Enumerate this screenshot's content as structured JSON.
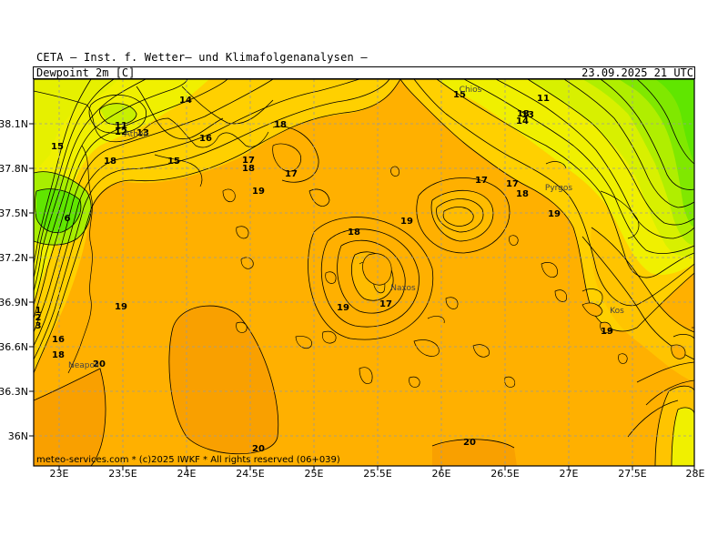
{
  "header": {
    "institute": "CETA — Inst. f. Wetter— und Klimafolgenanalysen —",
    "parameter": "Dewpoint_2m [C]",
    "valid_time": "23.09.2025 21 UTC"
  },
  "footer": "meteo-services.com * (c)2025 IWKF * All rights reserved (06+039)",
  "axes": {
    "lon_labels": [
      "23E",
      "23.5E",
      "24E",
      "24.5E",
      "25E",
      "25.5E",
      "26E",
      "26.5E",
      "27E",
      "27.5E",
      "28E"
    ],
    "lat_labels": [
      "38.1N",
      "37.8N",
      "37.5N",
      "37.2N",
      "36.9N",
      "36.6N",
      "36.3N",
      "36N"
    ]
  },
  "cities": [
    "Chios",
    "Athen",
    "Pyrgos",
    "Naxos",
    "Kos",
    "Neapoli"
  ],
  "contour_labels": [
    "11",
    "11",
    "12",
    "13",
    "13",
    "13",
    "14",
    "14",
    "15",
    "15",
    "15",
    "16",
    "16",
    "17",
    "17",
    "17",
    "17",
    "17",
    "18",
    "18",
    "18",
    "18",
    "18",
    "18",
    "19",
    "19",
    "19",
    "19",
    "19",
    "19",
    "20",
    "20",
    "20",
    "6",
    "1",
    "2",
    "3"
  ],
  "colors": {
    "orange_main": "#ffb000",
    "orange_dark": "#f9a000",
    "yellow_orange": "#ffd000",
    "yellow": "#f0f000",
    "yellow_green": "#c8f000",
    "green": "#60e600"
  }
}
